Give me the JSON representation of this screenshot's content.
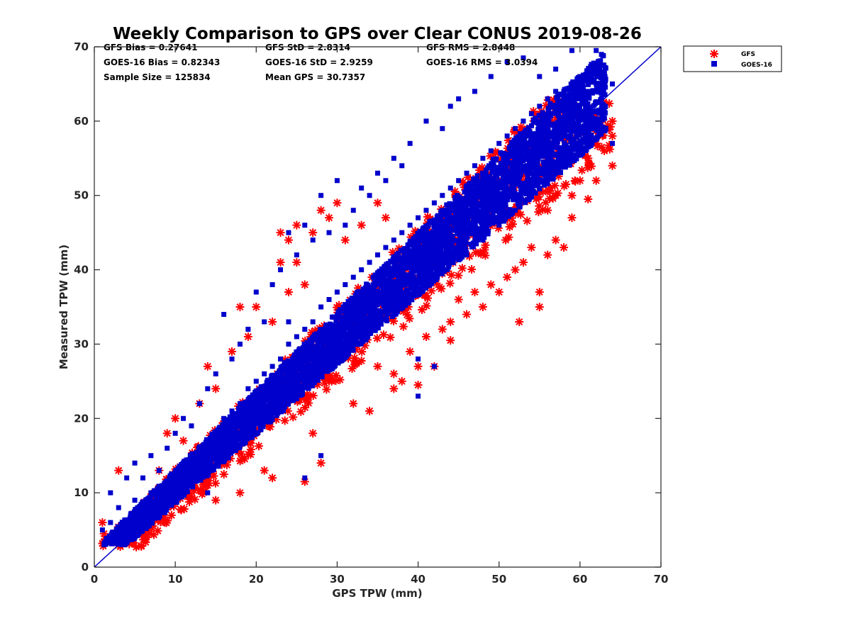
{
  "chart_data": {
    "type": "scatter",
    "title": "Weekly Comparison to GPS over Clear CONUS 2019-08-26",
    "xlabel": "GPS TPW (mm)",
    "ylabel": "Measured TPW (mm)",
    "xlim": [
      0,
      70
    ],
    "ylim": [
      0,
      70
    ],
    "xticks": [
      "0",
      "10",
      "20",
      "30",
      "40",
      "50",
      "60",
      "70"
    ],
    "yticks": [
      "0",
      "10",
      "20",
      "30",
      "40",
      "50",
      "60",
      "70"
    ],
    "grid": false,
    "legend_position": "outside top-right",
    "reference_line": {
      "x": [
        0,
        70
      ],
      "y": [
        0,
        70
      ],
      "color": "#0000cc"
    },
    "stats": [
      [
        "GFS Bias = 0.27641",
        "GFS StD = 2.8314",
        "GFS RMS = 2.8448"
      ],
      [
        "GOES-16 Bias = 0.82343",
        "GOES-16 StD = 2.9259",
        "GOES-16 RMS = 3.0394"
      ],
      [
        "Sample Size = 125834",
        "Mean GPS = 30.7357",
        ""
      ]
    ],
    "series": [
      {
        "name": "GFS",
        "marker": "asterisk",
        "color": "#ff0000",
        "points": [
          [
            1,
            6
          ],
          [
            1.2,
            4.5
          ],
          [
            2,
            4
          ],
          [
            3,
            13
          ],
          [
            3.5,
            3.5
          ],
          [
            5,
            7
          ],
          [
            6,
            5
          ],
          [
            7,
            9
          ],
          [
            8,
            13
          ],
          [
            9,
            18
          ],
          [
            10,
            20
          ],
          [
            11,
            17
          ],
          [
            12,
            11
          ],
          [
            13,
            22
          ],
          [
            14,
            27
          ],
          [
            14,
            11
          ],
          [
            15,
            9
          ],
          [
            15,
            24
          ],
          [
            16,
            15
          ],
          [
            17,
            29
          ],
          [
            18,
            10
          ],
          [
            18,
            35
          ],
          [
            19,
            31
          ],
          [
            20,
            35
          ],
          [
            20,
            23
          ],
          [
            21,
            13
          ],
          [
            22,
            12
          ],
          [
            22,
            33
          ],
          [
            23,
            41
          ],
          [
            23,
            45
          ],
          [
            24,
            44
          ],
          [
            24,
            37
          ],
          [
            25,
            46
          ],
          [
            25,
            41
          ],
          [
            25,
            26
          ],
          [
            26,
            11.5
          ],
          [
            26,
            38
          ],
          [
            27,
            45
          ],
          [
            27,
            18
          ],
          [
            28,
            48
          ],
          [
            28,
            14
          ],
          [
            29,
            47
          ],
          [
            29,
            25
          ],
          [
            30,
            49
          ],
          [
            31,
            44
          ],
          [
            32,
            22
          ],
          [
            33,
            46
          ],
          [
            34,
            21
          ],
          [
            35,
            49
          ],
          [
            35,
            27
          ],
          [
            36,
            47
          ],
          [
            37,
            26
          ],
          [
            37,
            24
          ],
          [
            38,
            25
          ],
          [
            39,
            29
          ],
          [
            40,
            24.5
          ],
          [
            40,
            27
          ],
          [
            41,
            31
          ],
          [
            42,
            27
          ],
          [
            43,
            32
          ],
          [
            44,
            30.5
          ],
          [
            44,
            33
          ],
          [
            45,
            36
          ],
          [
            46,
            34
          ],
          [
            47,
            37
          ],
          [
            48,
            35
          ],
          [
            49,
            38
          ],
          [
            50,
            37
          ],
          [
            51,
            39
          ],
          [
            52,
            40
          ],
          [
            52,
            52.5
          ],
          [
            52.5,
            33
          ],
          [
            53,
            41
          ],
          [
            54,
            43
          ],
          [
            55,
            35
          ],
          [
            55,
            37
          ],
          [
            56,
            42
          ],
          [
            56,
            48
          ],
          [
            57,
            44
          ],
          [
            57,
            50
          ],
          [
            58,
            43
          ],
          [
            58,
            56
          ],
          [
            59,
            47
          ],
          [
            59,
            50
          ],
          [
            60,
            52
          ],
          [
            60,
            61
          ],
          [
            61,
            49.5
          ],
          [
            61,
            55
          ],
          [
            62,
            52
          ],
          [
            62,
            57
          ],
          [
            63,
            56
          ],
          [
            63,
            59
          ],
          [
            64,
            54
          ],
          [
            64,
            60
          ],
          [
            64,
            58
          ],
          [
            30,
            30
          ],
          [
            20,
            20
          ],
          [
            40,
            40
          ],
          [
            50,
            50
          ],
          [
            10,
            10
          ],
          [
            35,
            34
          ],
          [
            45,
            44
          ],
          [
            25,
            24
          ],
          [
            15,
            14
          ],
          [
            5,
            5
          ],
          [
            55,
            54
          ],
          [
            33,
            36
          ],
          [
            43,
            47
          ],
          [
            23,
            26
          ],
          [
            13,
            15
          ]
        ]
      },
      {
        "name": "GOES-16",
        "marker": "square",
        "color": "#0000cc",
        "points": [
          [
            1,
            5
          ],
          [
            2,
            6
          ],
          [
            2,
            10
          ],
          [
            3,
            4
          ],
          [
            3,
            8
          ],
          [
            4,
            12
          ],
          [
            4,
            5
          ],
          [
            5,
            9
          ],
          [
            5,
            14
          ],
          [
            6,
            7
          ],
          [
            6,
            12
          ],
          [
            7,
            10
          ],
          [
            7,
            15
          ],
          [
            8,
            9
          ],
          [
            8,
            13
          ],
          [
            9,
            11
          ],
          [
            9,
            16
          ],
          [
            10,
            12
          ],
          [
            10,
            18
          ],
          [
            11,
            13
          ],
          [
            11,
            20
          ],
          [
            12,
            14
          ],
          [
            12,
            19
          ],
          [
            13,
            16
          ],
          [
            13,
            22
          ],
          [
            14,
            17
          ],
          [
            14,
            24
          ],
          [
            15,
            18
          ],
          [
            15,
            26
          ],
          [
            16,
            20
          ],
          [
            16,
            34
          ],
          [
            17,
            21
          ],
          [
            17,
            28
          ],
          [
            18,
            22
          ],
          [
            18,
            30
          ],
          [
            19,
            24
          ],
          [
            19,
            32
          ],
          [
            20,
            25
          ],
          [
            20,
            37
          ],
          [
            21,
            26
          ],
          [
            21,
            33
          ],
          [
            22,
            27
          ],
          [
            22,
            38
          ],
          [
            23,
            28
          ],
          [
            23,
            40
          ],
          [
            24,
            30
          ],
          [
            24,
            45
          ],
          [
            25,
            31
          ],
          [
            25,
            42
          ],
          [
            26,
            32
          ],
          [
            26,
            46
          ],
          [
            27,
            33
          ],
          [
            27,
            44
          ],
          [
            28,
            35
          ],
          [
            28,
            50
          ],
          [
            29,
            36
          ],
          [
            29,
            45
          ],
          [
            30,
            37
          ],
          [
            30,
            52
          ],
          [
            31,
            38
          ],
          [
            31,
            46
          ],
          [
            32,
            39
          ],
          [
            32,
            48
          ],
          [
            33,
            40
          ],
          [
            33,
            51
          ],
          [
            34,
            41
          ],
          [
            34,
            50
          ],
          [
            35,
            42
          ],
          [
            35,
            53
          ],
          [
            36,
            43
          ],
          [
            36,
            52
          ],
          [
            37,
            44
          ],
          [
            37,
            55
          ],
          [
            38,
            45
          ],
          [
            38,
            54
          ],
          [
            39,
            46
          ],
          [
            39,
            57
          ],
          [
            40,
            47
          ],
          [
            40,
            28
          ],
          [
            40,
            23
          ],
          [
            41,
            48
          ],
          [
            41,
            60
          ],
          [
            42,
            49
          ],
          [
            42,
            27
          ],
          [
            43,
            50
          ],
          [
            43,
            59
          ],
          [
            44,
            51
          ],
          [
            44,
            62
          ],
          [
            45,
            52
          ],
          [
            45,
            63
          ],
          [
            46,
            53
          ],
          [
            46,
            42
          ],
          [
            47,
            54
          ],
          [
            47,
            64
          ],
          [
            48,
            55
          ],
          [
            48,
            44
          ],
          [
            49,
            56
          ],
          [
            49,
            66
          ],
          [
            50,
            57
          ],
          [
            50,
            46
          ],
          [
            51,
            58
          ],
          [
            51,
            68
          ],
          [
            52,
            59
          ],
          [
            52,
            48
          ],
          [
            53,
            60
          ],
          [
            53,
            68.5
          ],
          [
            54,
            61
          ],
          [
            54,
            50
          ],
          [
            55,
            62
          ],
          [
            55,
            66
          ],
          [
            56,
            63
          ],
          [
            56,
            52
          ],
          [
            57,
            64
          ],
          [
            57,
            67
          ],
          [
            58,
            64
          ],
          [
            58,
            56
          ],
          [
            59,
            65
          ],
          [
            59,
            69.5
          ],
          [
            60,
            66
          ],
          [
            61,
            64
          ],
          [
            61,
            58
          ],
          [
            62,
            65
          ],
          [
            62,
            69.5
          ],
          [
            63,
            62
          ],
          [
            63,
            66
          ],
          [
            64,
            65
          ],
          [
            64,
            57
          ],
          [
            26,
            12
          ],
          [
            28,
            15
          ],
          [
            24,
            33
          ],
          [
            21,
            20
          ],
          [
            14,
            10
          ],
          [
            31,
            29
          ],
          [
            36,
            35
          ],
          [
            46,
            45
          ],
          [
            56,
            55
          ],
          [
            39,
            39
          ],
          [
            29,
            29
          ],
          [
            19,
            18
          ],
          [
            9,
            9
          ]
        ]
      }
    ]
  }
}
